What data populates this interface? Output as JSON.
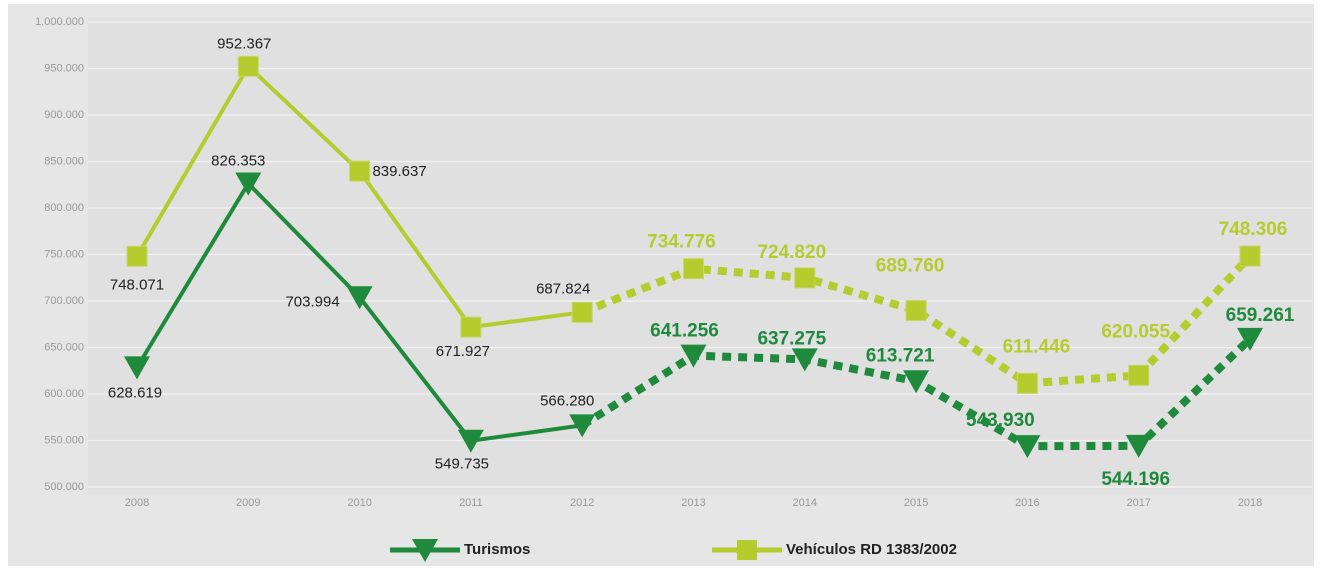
{
  "chart_data": {
    "type": "line",
    "categories": [
      "2008",
      "2009",
      "2010",
      "2011",
      "2012",
      "2013",
      "2014",
      "2015",
      "2016",
      "2017",
      "2018"
    ],
    "dash_from_index": 4,
    "series": [
      {
        "name": "Turismos",
        "color": "#1f8a3c",
        "marker": "triangle-down",
        "values": [
          628619,
          826353,
          703994,
          549735,
          566280,
          641256,
          637275,
          613721,
          543930,
          544196,
          659261
        ],
        "value_labels": [
          "628.619",
          "826.353",
          "703.994",
          "549.735",
          "566.280",
          "641.256",
          "637.275",
          "613.721",
          "543.930",
          "544.196",
          "659.261"
        ]
      },
      {
        "name": "Vehículos RD 1383/2002",
        "color": "#b5cc2e",
        "marker": "square",
        "values": [
          748071,
          952367,
          839637,
          671927,
          687824,
          734776,
          724820,
          689760,
          611446,
          620055,
          748306
        ],
        "value_labels": [
          "748.071",
          "952.367",
          "839.637",
          "671.927",
          "687.824",
          "734.776",
          "724.820",
          "689.760",
          "611.446",
          "620.055",
          "748.306"
        ]
      }
    ],
    "ylim": [
      500000,
      1000000
    ],
    "yticks": [
      {
        "value": 500000,
        "label": "500.000"
      },
      {
        "value": 550000,
        "label": "550.000"
      },
      {
        "value": 600000,
        "label": "600.000"
      },
      {
        "value": 650000,
        "label": "650.000"
      },
      {
        "value": 700000,
        "label": "700.000"
      },
      {
        "value": 750000,
        "label": "750.000"
      },
      {
        "value": 800000,
        "label": "800.000"
      },
      {
        "value": 850000,
        "label": "850.000"
      },
      {
        "value": 900000,
        "label": "900.000"
      },
      {
        "value": 950000,
        "label": "950.000"
      },
      {
        "value": 1000000,
        "label": "1.000.000"
      }
    ],
    "grid": true,
    "legend": "bottom"
  }
}
